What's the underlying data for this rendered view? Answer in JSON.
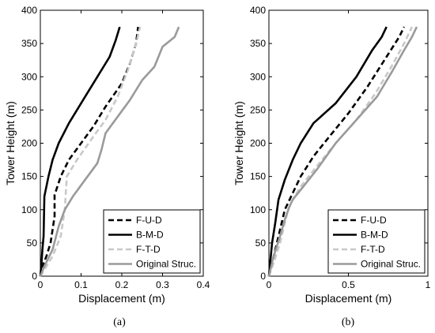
{
  "chart_data": [
    {
      "type": "line",
      "panel_label": "(a)",
      "xlabel": "Displacement (m)",
      "ylabel": "Tower Height (m)",
      "xlim": [
        0,
        0.4
      ],
      "ylim": [
        0,
        400
      ],
      "xticks": [
        0,
        0.1,
        0.2,
        0.3,
        0.4
      ],
      "yticks": [
        0,
        50,
        100,
        150,
        200,
        250,
        300,
        350,
        400
      ],
      "xtick_labels": [
        "0",
        "0.1",
        "0.2",
        "0.3",
        "0.4"
      ],
      "ytick_labels": [
        "0",
        "50",
        "100",
        "150",
        "200",
        "250",
        "300",
        "350",
        "400"
      ],
      "grid": false,
      "legend_position": "bottom-right",
      "series": [
        {
          "name": "F-U-D",
          "color": "#000000",
          "dash": "dashed",
          "x": [
            0,
            0.005,
            0.015,
            0.025,
            0.03,
            0.035,
            0.035,
            0.05,
            0.07,
            0.1,
            0.13,
            0.16,
            0.2,
            0.22,
            0.235,
            0.24
          ],
          "y": [
            0,
            15,
            30,
            50,
            70,
            90,
            122,
            150,
            175,
            200,
            225,
            255,
            290,
            320,
            350,
            375
          ]
        },
        {
          "name": "B-M-D",
          "color": "#000000",
          "dash": "solid",
          "x": [
            0,
            0.003,
            0.005,
            0.008,
            0.01,
            0.02,
            0.03,
            0.045,
            0.07,
            0.1,
            0.14,
            0.17,
            0.185,
            0.195
          ],
          "y": [
            0,
            20,
            40,
            60,
            120,
            150,
            175,
            200,
            230,
            260,
            300,
            330,
            355,
            375
          ]
        },
        {
          "name": "F-T-D",
          "color": "#c8c8c8",
          "dash": "dashed",
          "x": [
            0,
            0.01,
            0.03,
            0.05,
            0.055,
            0.06,
            0.065,
            0.09,
            0.13,
            0.16,
            0.19,
            0.215,
            0.235,
            0.245
          ],
          "y": [
            0,
            10,
            30,
            60,
            80,
            100,
            150,
            175,
            210,
            235,
            270,
            310,
            350,
            375
          ]
        },
        {
          "name": "Original Struc.",
          "color": "#9a9a9a",
          "dash": "solid",
          "x": [
            0,
            0.01,
            0.03,
            0.045,
            0.06,
            0.08,
            0.11,
            0.14,
            0.15,
            0.16,
            0.19,
            0.22,
            0.25,
            0.28,
            0.3,
            0.33,
            0.34
          ],
          "y": [
            0,
            15,
            40,
            75,
            100,
            120,
            145,
            170,
            190,
            215,
            240,
            265,
            295,
            315,
            345,
            360,
            375
          ]
        }
      ]
    },
    {
      "type": "line",
      "panel_label": "(b)",
      "xlabel": "Displacement (m)",
      "ylabel": "Tower Height (m)",
      "xlim": [
        0,
        1
      ],
      "ylim": [
        0,
        400
      ],
      "xticks": [
        0,
        0.5,
        1
      ],
      "yticks": [
        0,
        50,
        100,
        150,
        200,
        250,
        300,
        350,
        400
      ],
      "xtick_labels": [
        "0",
        "0.5",
        "1"
      ],
      "ytick_labels": [
        "0",
        "50",
        "100",
        "150",
        "200",
        "250",
        "300",
        "350",
        "400"
      ],
      "grid": false,
      "legend_position": "bottom-right",
      "series": [
        {
          "name": "F-U-D",
          "color": "#000000",
          "dash": "dashed",
          "x": [
            0,
            0.02,
            0.05,
            0.08,
            0.1,
            0.15,
            0.2,
            0.28,
            0.38,
            0.5,
            0.62,
            0.74,
            0.82,
            0.85
          ],
          "y": [
            0,
            20,
            50,
            80,
            100,
            125,
            150,
            180,
            210,
            245,
            285,
            330,
            360,
            375
          ]
        },
        {
          "name": "B-M-D",
          "color": "#000000",
          "dash": "solid",
          "x": [
            0,
            0.01,
            0.02,
            0.04,
            0.06,
            0.1,
            0.15,
            0.2,
            0.28,
            0.42,
            0.55,
            0.65,
            0.71,
            0.74
          ],
          "y": [
            0,
            25,
            50,
            80,
            115,
            145,
            175,
            200,
            230,
            260,
            300,
            340,
            360,
            375
          ]
        },
        {
          "name": "F-T-D",
          "color": "#c8c8c8",
          "dash": "dashed",
          "x": [
            0,
            0.03,
            0.07,
            0.1,
            0.12,
            0.15,
            0.2,
            0.3,
            0.42,
            0.55,
            0.67,
            0.77,
            0.85,
            0.9
          ],
          "y": [
            0,
            20,
            50,
            80,
            100,
            115,
            135,
            165,
            200,
            235,
            275,
            315,
            350,
            375
          ]
        },
        {
          "name": "Original Struc.",
          "color": "#9a9a9a",
          "dash": "solid",
          "x": [
            0,
            0.03,
            0.07,
            0.1,
            0.13,
            0.15,
            0.2,
            0.3,
            0.42,
            0.55,
            0.68,
            0.78,
            0.85,
            0.9,
            0.93
          ],
          "y": [
            0,
            30,
            60,
            85,
            105,
            115,
            130,
            160,
            200,
            235,
            270,
            310,
            340,
            360,
            375
          ]
        }
      ]
    }
  ]
}
